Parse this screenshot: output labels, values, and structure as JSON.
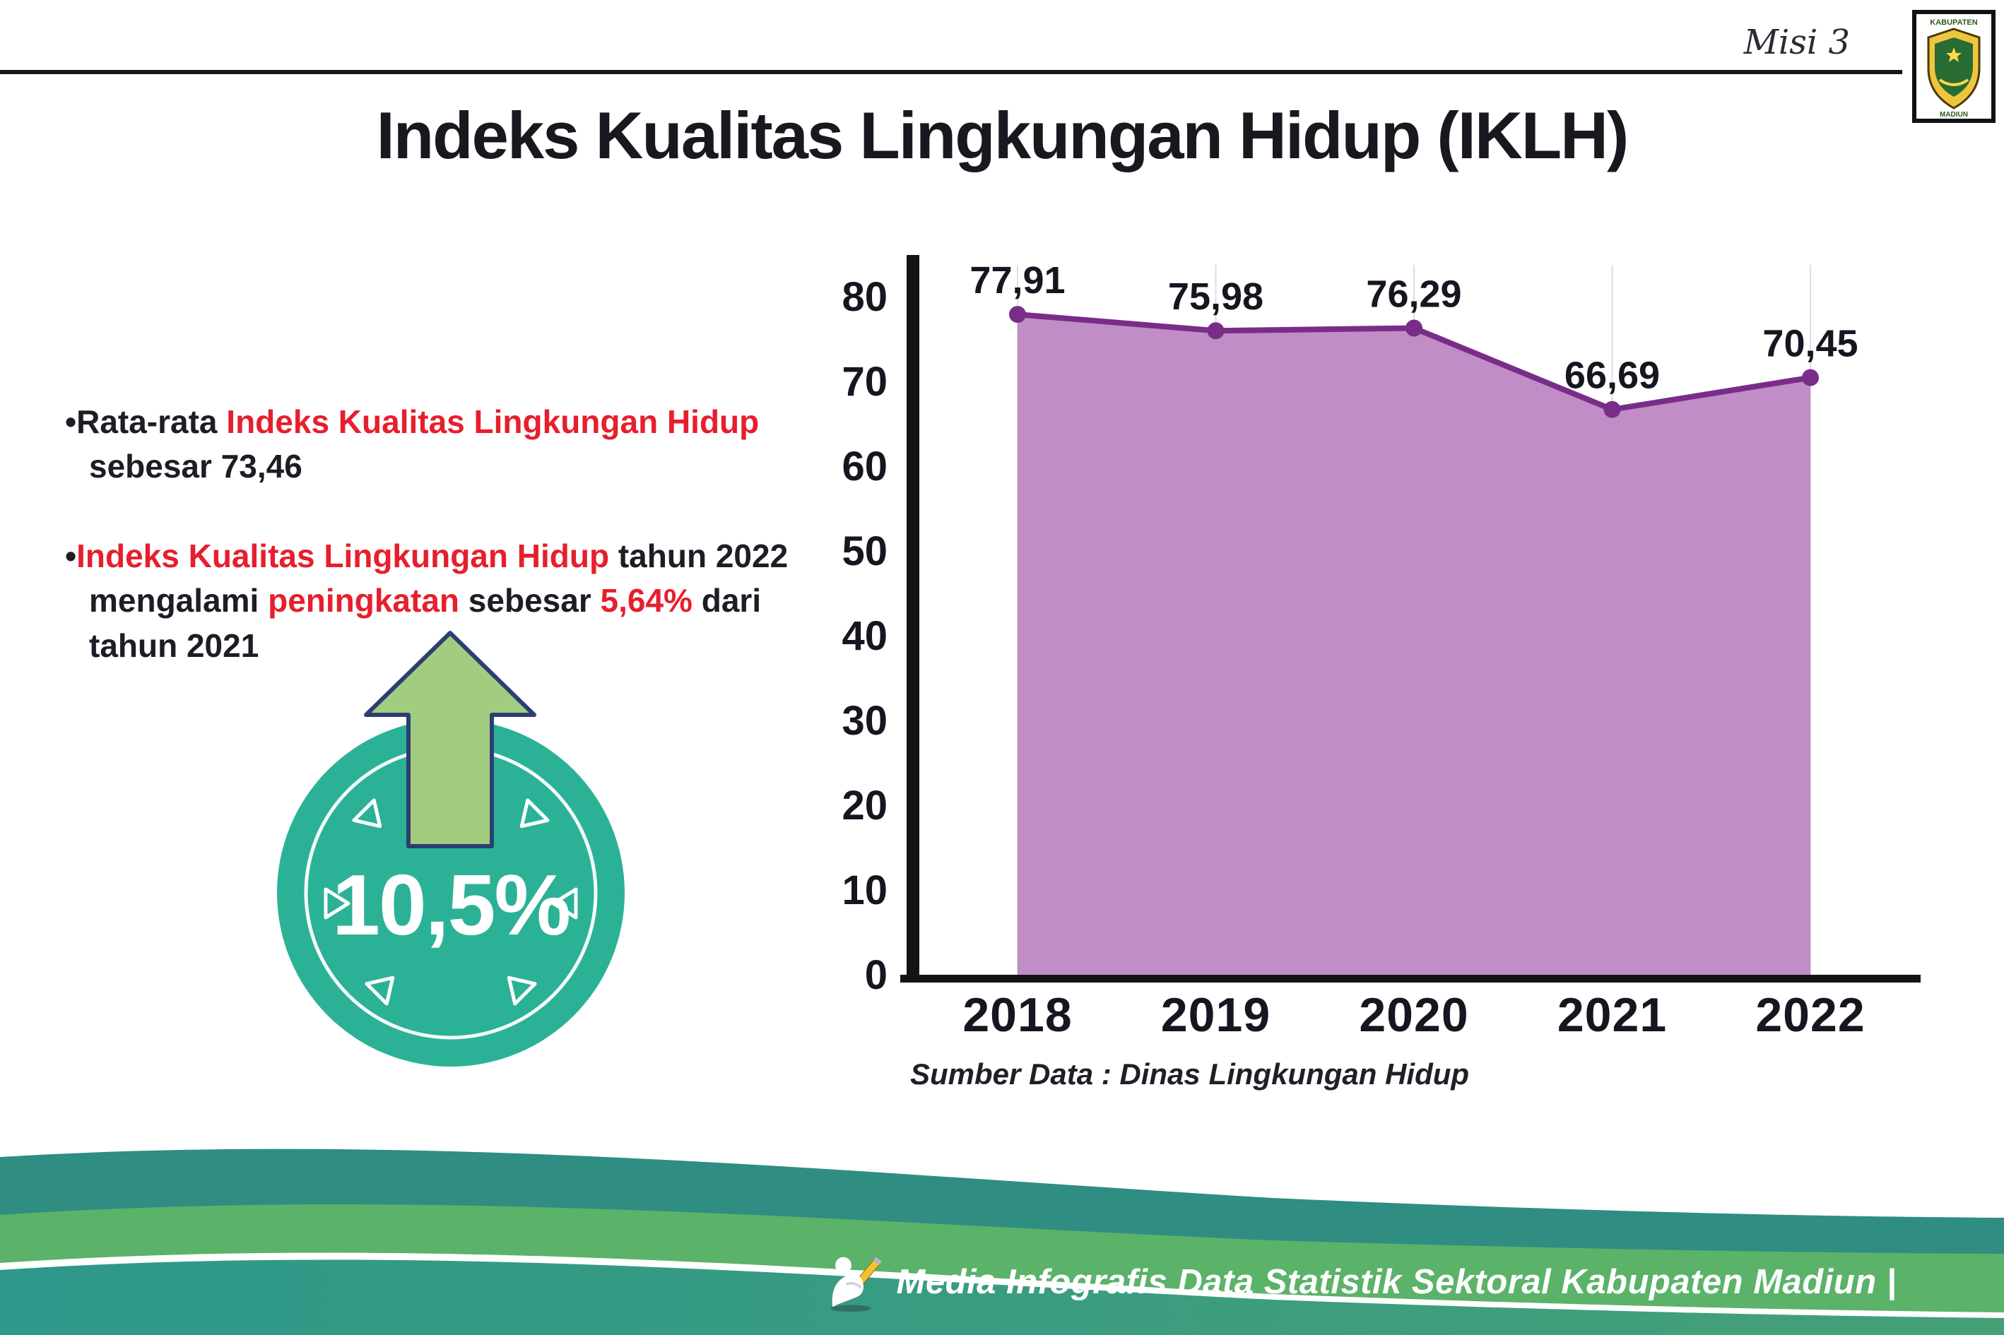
{
  "header": {
    "misi": "Misi 3",
    "title": "Indeks Kualitas Lingkungan Hidup (IKLH)"
  },
  "logo": {
    "line1": "KABUPATEN",
    "line2": "MADIUN"
  },
  "bullets": {
    "b1": [
      {
        "text": "•Rata-rata ",
        "red": false
      },
      {
        "text": "Indeks Kualitas Lingkungan Hidup",
        "red": true
      },
      {
        "text": " sebesar 73,46",
        "red": false
      }
    ],
    "b2": [
      {
        "text": "•",
        "red": false
      },
      {
        "text": "Indeks Kualitas Lingkungan Hidup",
        "red": true
      },
      {
        "text": " tahun 2022 mengalami ",
        "red": false
      },
      {
        "text": "peningkatan",
        "red": true
      },
      {
        "text": " sebesar ",
        "red": false
      },
      {
        "text": "5,64%",
        "red": true
      },
      {
        "text": " dari tahun 2021",
        "red": false
      }
    ]
  },
  "badge": {
    "value": "10,5%"
  },
  "chart_data": {
    "type": "area",
    "title": "Indeks Kualitas Lingkungan Hidup (IKLH)",
    "categories": [
      "2018",
      "2019",
      "2020",
      "2021",
      "2022"
    ],
    "values": [
      77.91,
      75.98,
      76.29,
      66.69,
      70.45
    ],
    "value_labels": [
      "77,91",
      "75,98",
      "76,29",
      "66,69",
      "70,45"
    ],
    "yticks": [
      0,
      10,
      20,
      30,
      40,
      50,
      60,
      70,
      80
    ],
    "ylim": [
      0,
      84
    ],
    "xlabel": "",
    "ylabel": "",
    "grid": "vertical-light",
    "legend": "none",
    "area_color": "#c08dc6",
    "line_color": "#7a2d88",
    "axis_color": "#131318"
  },
  "source_note": "Sumber Data : Dinas Lingkungan Hidup",
  "footer": {
    "caption": "Media Infografis Data Statistik Sektoral Kabupaten Madiun |"
  }
}
